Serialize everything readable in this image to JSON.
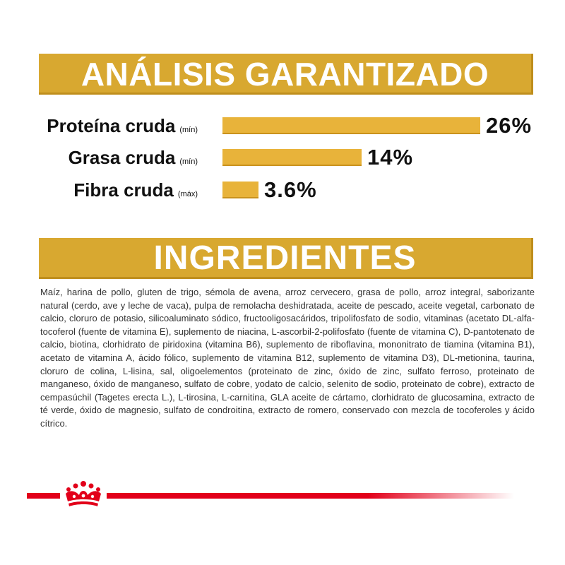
{
  "analysis": {
    "heading": "ANÁLISIS GARANTIZADO",
    "rows": [
      {
        "label": "Proteína cruda",
        "qualifier": "(mín)",
        "value_text": "26%",
        "value": 26
      },
      {
        "label": "Grasa cruda",
        "qualifier": "(mín)",
        "value_text": "14%",
        "value": 14
      },
      {
        "label": "Fibra cruda",
        "qualifier": "(máx)",
        "value_text": "3.6%",
        "value": 3.6
      }
    ]
  },
  "ingredients": {
    "heading": "INGREDIENTES",
    "text": "Maíz, harina de pollo, gluten de trigo, sémola de avena, arroz cervecero, grasa de pollo, arroz integral, saborizante natural (cerdo, ave y leche de vaca), pulpa de remolacha deshidratada, aceite de pescado, aceite vegetal, carbonato de calcio, cloruro de potasio, silicoaluminato sódico, fructooligosacáridos, tripolifosfato de sodio, vitaminas (acetato DL-alfa-tocoferol (fuente de vitamina E), suplemento de niacina, L-ascorbil-2-polifosfato (fuente de vitamina C), D-pantotenato de calcio, biotina, clorhidrato de piridoxina (vitamina B6), suplemento de riboflavina, mononitrato de tiamina (vitamina B1), acetato de vitamina A, ácido fólico, suplemento de vitamina B12, suplemento de vitamina D3), DL-metionina, taurina, cloruro de colina, L-lisina, sal, oligoelementos (proteinato de zinc, óxido de zinc, sulfato ferroso, proteinato de manganeso, óxido de manganeso, sulfato de cobre, yodato de calcio, selenito de sodio, proteinato de cobre), extracto de cempasúchil (Tagetes erecta L.), L-tirosina, L-carnitina, GLA aceite de cártamo, clorhidrato de glucosamina, extracto de té verde, óxido de magnesio, sulfato de condroitina, extracto de romero, conservado con mezcla de tocoferoles y ácido cítrico."
  },
  "colors": {
    "banner": "#d8a830",
    "bar": "#e8b33a",
    "brand_red": "#e2001a"
  },
  "footer": {
    "logo_icon": "crown-icon"
  }
}
